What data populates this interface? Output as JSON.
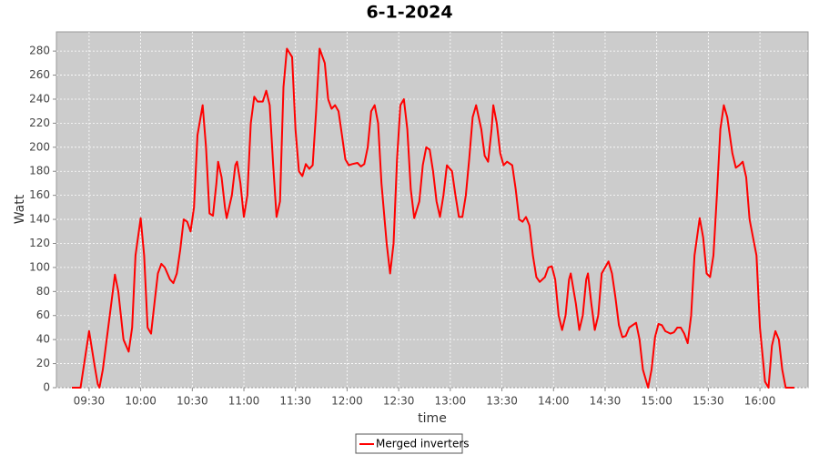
{
  "chart_data": {
    "type": "line",
    "title": "6-1-2024",
    "x_label": "time",
    "y_label": "Watt",
    "x": [
      "09:20",
      "09:25",
      "09:30",
      "09:33",
      "09:35",
      "09:36",
      "09:38",
      "09:42",
      "09:45",
      "09:47",
      "09:50",
      "09:53",
      "09:55",
      "09:57",
      "10:00",
      "10:02",
      "10:04",
      "10:06",
      "10:08",
      "10:10",
      "10:12",
      "10:14",
      "10:17",
      "10:19",
      "10:21",
      "10:23",
      "10:25",
      "10:27",
      "10:29",
      "10:31",
      "10:33",
      "10:36",
      "10:38",
      "10:40",
      "10:42",
      "10:44",
      "10:45",
      "10:47",
      "10:49",
      "10:50",
      "10:53",
      "10:55",
      "10:56",
      "10:58",
      "11:00",
      "11:02",
      "11:04",
      "11:06",
      "11:08",
      "11:11",
      "11:13",
      "11:15",
      "11:17",
      "11:19",
      "11:21",
      "11:23",
      "11:25",
      "11:28",
      "11:30",
      "11:32",
      "11:34",
      "11:36",
      "11:38",
      "11:40",
      "11:42",
      "11:44",
      "11:47",
      "11:49",
      "11:51",
      "11:53",
      "11:55",
      "11:57",
      "11:59",
      "12:01",
      "12:03",
      "12:06",
      "12:08",
      "12:10",
      "12:12",
      "12:14",
      "12:16",
      "12:18",
      "12:20",
      "12:23",
      "12:25",
      "12:27",
      "12:29",
      "12:31",
      "12:33",
      "12:35",
      "12:37",
      "12:39",
      "12:42",
      "12:44",
      "12:46",
      "12:48",
      "12:50",
      "12:52",
      "12:54",
      "12:56",
      "12:58",
      "13:01",
      "13:03",
      "13:05",
      "13:07",
      "13:09",
      "13:11",
      "13:13",
      "13:15",
      "13:18",
      "13:20",
      "13:22",
      "13:24",
      "13:25",
      "13:27",
      "13:29",
      "13:31",
      "13:33",
      "13:36",
      "13:38",
      "13:40",
      "13:42",
      "13:44",
      "13:46",
      "13:48",
      "13:50",
      "13:52",
      "13:55",
      "13:57",
      "13:59",
      "14:01",
      "14:03",
      "14:05",
      "14:07",
      "14:09",
      "14:10",
      "14:13",
      "14:15",
      "14:17",
      "14:19",
      "14:20",
      "14:22",
      "14:24",
      "14:26",
      "14:28",
      "14:32",
      "14:34",
      "14:36",
      "14:38",
      "14:40",
      "14:42",
      "14:44",
      "14:48",
      "14:50",
      "14:52",
      "14:55",
      "14:57",
      "14:59",
      "15:01",
      "15:03",
      "15:05",
      "15:08",
      "15:10",
      "15:12",
      "15:14",
      "15:16",
      "15:18",
      "15:20",
      "15:22",
      "15:25",
      "15:27",
      "15:29",
      "15:31",
      "15:33",
      "15:35",
      "15:37",
      "15:39",
      "15:41",
      "15:44",
      "15:46",
      "15:48",
      "15:50",
      "15:52",
      "15:54",
      "15:56",
      "15:58",
      "16:00",
      "16:03",
      "16:05",
      "16:07",
      "16:09",
      "16:11",
      "16:13",
      "16:15",
      "16:20"
    ],
    "series": [
      {
        "name": "Merged inverters",
        "color": "#ff0000",
        "values": [
          0,
          0,
          47,
          20,
          3,
          0,
          15,
          60,
          94,
          80,
          40,
          30,
          50,
          110,
          141,
          110,
          50,
          45,
          70,
          95,
          103,
          100,
          90,
          87,
          95,
          115,
          140,
          138,
          130,
          150,
          210,
          235,
          200,
          145,
          143,
          170,
          188,
          175,
          150,
          141,
          160,
          185,
          188,
          170,
          142,
          160,
          220,
          242,
          238,
          238,
          247,
          235,
          185,
          142,
          155,
          250,
          282,
          275,
          215,
          180,
          176,
          186,
          182,
          185,
          230,
          282,
          270,
          240,
          232,
          235,
          230,
          210,
          190,
          185,
          186,
          187,
          184,
          186,
          200,
          230,
          235,
          220,
          170,
          120,
          95,
          120,
          190,
          235,
          240,
          215,
          165,
          141,
          155,
          185,
          200,
          198,
          180,
          155,
          142,
          160,
          185,
          180,
          160,
          142,
          142,
          160,
          190,
          225,
          235,
          215,
          193,
          188,
          215,
          235,
          220,
          195,
          185,
          188,
          185,
          165,
          140,
          138,
          142,
          135,
          110,
          92,
          88,
          92,
          100,
          101,
          90,
          60,
          48,
          60,
          90,
          95,
          70,
          48,
          60,
          90,
          95,
          70,
          48,
          60,
          95,
          105,
          95,
          75,
          52,
          42,
          43,
          50,
          54,
          40,
          15,
          0,
          15,
          42,
          53,
          52,
          47,
          45,
          46,
          50,
          50,
          45,
          37,
          60,
          110,
          141,
          125,
          95,
          92,
          110,
          160,
          215,
          235,
          225,
          195,
          183,
          185,
          188,
          175,
          140,
          125,
          110,
          50,
          5,
          0,
          35,
          47,
          40,
          15,
          0,
          0
        ]
      }
    ],
    "xlim": [
      "09:11",
      "16:28"
    ],
    "xticks": [
      "09:30",
      "10:00",
      "10:30",
      "11:00",
      "11:30",
      "12:00",
      "12:30",
      "13:00",
      "13:30",
      "14:00",
      "14:30",
      "15:00",
      "15:30",
      "16:00"
    ],
    "ylim": [
      0,
      296
    ],
    "yticks": [
      0,
      20,
      40,
      60,
      80,
      100,
      120,
      140,
      160,
      180,
      200,
      220,
      240,
      260,
      280
    ],
    "grid": true,
    "legend": "bottom"
  }
}
